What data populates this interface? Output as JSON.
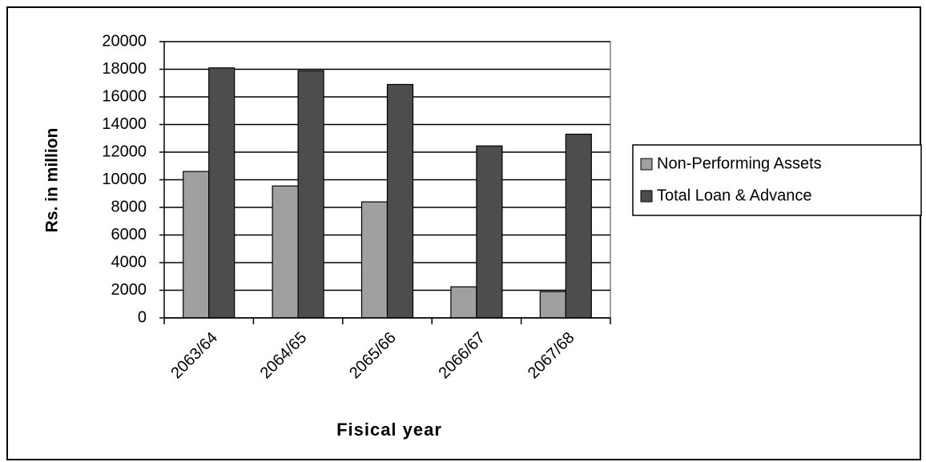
{
  "chart_data": {
    "type": "bar",
    "x_label": "Fisical year",
    "y_label": "Rs. in million",
    "categories": [
      "2063/64",
      "2064/65",
      "2065/66",
      "2066/67",
      "2067/68"
    ],
    "series": [
      {
        "name": "Non-Performing Assets",
        "color": "#a0a0a0",
        "values": [
          10600,
          9550,
          8400,
          2250,
          1900
        ]
      },
      {
        "name": "Total Loan & Advance",
        "color": "#4d4d4d",
        "values": [
          18100,
          17900,
          16900,
          12450,
          13300
        ]
      }
    ],
    "ylim": [
      0,
      20000
    ],
    "yticks": [
      0,
      2000,
      4000,
      6000,
      8000,
      10000,
      12000,
      14000,
      16000,
      18000,
      20000
    ],
    "grid": true,
    "legend": "right"
  }
}
